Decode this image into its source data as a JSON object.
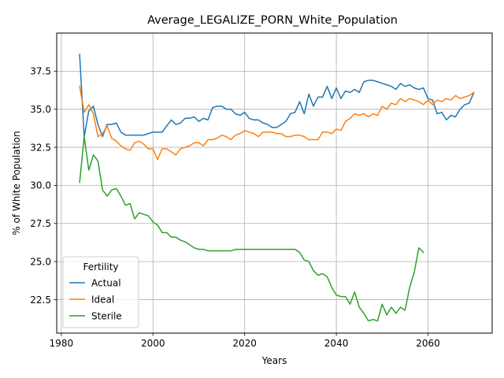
{
  "chart_data": {
    "type": "line",
    "title": "Average_LEGALIZE_PORN_White_Population",
    "xlabel": "Years",
    "ylabel": "% of White Population",
    "xlim": [
      1979,
      2074
    ],
    "ylim": [
      20.3,
      40.0
    ],
    "xticks": [
      1980,
      2000,
      2020,
      2040,
      2060
    ],
    "yticks": [
      22.5,
      25.0,
      27.5,
      30.0,
      32.5,
      35.0,
      37.5
    ],
    "xtick_labels": [
      "1980",
      "2000",
      "2020",
      "2040",
      "2060"
    ],
    "ytick_labels": [
      "22.5",
      "25.0",
      "27.5",
      "30.0",
      "32.5",
      "35.0",
      "37.5"
    ],
    "grid": true,
    "legend": {
      "title": "Fertility",
      "position": "lower left"
    },
    "series": [
      {
        "name": "Actual",
        "color": "#1f77b4",
        "x": [
          1984,
          1985,
          1986,
          1987,
          1988,
          1989,
          1990,
          1991,
          1992,
          1993,
          1994,
          1995,
          1996,
          1997,
          1998,
          1999,
          2000,
          2001,
          2002,
          2003,
          2004,
          2005,
          2006,
          2007,
          2008,
          2009,
          2010,
          2011,
          2012,
          2013,
          2014,
          2015,
          2016,
          2017,
          2018,
          2019,
          2020,
          2021,
          2022,
          2023,
          2024,
          2025,
          2026,
          2027,
          2028,
          2029,
          2030,
          2031,
          2032,
          2033,
          2034,
          2035,
          2036,
          2037,
          2038,
          2039,
          2040,
          2041,
          2042,
          2043,
          2044,
          2045,
          2046,
          2047,
          2048,
          2049,
          2050,
          2051,
          2052,
          2053,
          2054,
          2055,
          2056,
          2057,
          2058,
          2059,
          2060,
          2061,
          2062,
          2063,
          2064,
          2065,
          2066,
          2067,
          2068,
          2069,
          2070
        ],
        "values": [
          38.6,
          33.2,
          34.9,
          35.2,
          34.0,
          33.2,
          34.0,
          34.0,
          34.1,
          33.5,
          33.3,
          33.3,
          33.3,
          33.3,
          33.3,
          33.4,
          33.5,
          33.5,
          33.5,
          33.9,
          34.3,
          34.0,
          34.1,
          34.4,
          34.4,
          34.5,
          34.2,
          34.4,
          34.3,
          35.1,
          35.2,
          35.2,
          35.0,
          35.0,
          34.7,
          34.6,
          34.8,
          34.4,
          34.3,
          34.3,
          34.1,
          34.0,
          33.8,
          33.8,
          34.0,
          34.2,
          34.7,
          34.8,
          35.5,
          34.7,
          36.0,
          35.2,
          35.8,
          35.8,
          36.5,
          35.7,
          36.4,
          35.7,
          36.2,
          36.1,
          36.3,
          36.1,
          36.8,
          36.9,
          36.9,
          36.8,
          36.7,
          36.6,
          36.5,
          36.3,
          36.7,
          36.5,
          36.6,
          36.4,
          36.3,
          36.4,
          35.7,
          35.6,
          34.7,
          34.8,
          34.3,
          34.6,
          34.5,
          35.0,
          35.3,
          35.4,
          36.1
        ]
      },
      {
        "name": "Ideal",
        "color": "#ff7f0e",
        "x": [
          1984,
          1985,
          1986,
          1987,
          1988,
          1989,
          1990,
          1991,
          1992,
          1993,
          1994,
          1995,
          1996,
          1997,
          1998,
          1999,
          2000,
          2001,
          2002,
          2003,
          2004,
          2005,
          2006,
          2007,
          2008,
          2009,
          2010,
          2011,
          2012,
          2013,
          2014,
          2015,
          2016,
          2017,
          2018,
          2019,
          2020,
          2021,
          2022,
          2023,
          2024,
          2025,
          2026,
          2027,
          2028,
          2029,
          2030,
          2031,
          2032,
          2033,
          2034,
          2035,
          2036,
          2037,
          2038,
          2039,
          2040,
          2041,
          2042,
          2043,
          2044,
          2045,
          2046,
          2047,
          2048,
          2049,
          2050,
          2051,
          2052,
          2053,
          2054,
          2055,
          2056,
          2057,
          2058,
          2059,
          2060,
          2061,
          2062,
          2063,
          2064,
          2065,
          2066,
          2067,
          2068,
          2069,
          2070
        ],
        "values": [
          36.5,
          34.8,
          35.3,
          34.7,
          33.2,
          33.4,
          33.9,
          33.1,
          32.9,
          32.6,
          32.4,
          32.3,
          32.8,
          32.9,
          32.7,
          32.4,
          32.4,
          31.7,
          32.4,
          32.4,
          32.2,
          32.0,
          32.4,
          32.5,
          32.6,
          32.8,
          32.8,
          32.6,
          33.0,
          33.0,
          33.1,
          33.3,
          33.2,
          33.0,
          33.3,
          33.4,
          33.6,
          33.5,
          33.4,
          33.2,
          33.5,
          33.5,
          33.5,
          33.4,
          33.4,
          33.2,
          33.2,
          33.3,
          33.3,
          33.2,
          33.0,
          33.0,
          33.0,
          33.5,
          33.5,
          33.4,
          33.7,
          33.6,
          34.2,
          34.4,
          34.7,
          34.6,
          34.7,
          34.5,
          34.7,
          34.6,
          35.2,
          35.0,
          35.4,
          35.3,
          35.7,
          35.5,
          35.7,
          35.6,
          35.5,
          35.3,
          35.6,
          35.3,
          35.6,
          35.5,
          35.7,
          35.6,
          35.9,
          35.7,
          35.8,
          35.9,
          36.1
        ]
      },
      {
        "name": "Sterile",
        "color": "#2ca02c",
        "x": [
          1984,
          1985,
          1986,
          1987,
          1988,
          1989,
          1990,
          1991,
          1992,
          1993,
          1994,
          1995,
          1996,
          1997,
          1998,
          1999,
          2000,
          2001,
          2002,
          2003,
          2004,
          2005,
          2006,
          2007,
          2008,
          2009,
          2010,
          2011,
          2012,
          2013,
          2014,
          2015,
          2016,
          2017,
          2018,
          2019,
          2020,
          2021,
          2022,
          2023,
          2024,
          2025,
          2026,
          2027,
          2028,
          2029,
          2030,
          2031,
          2032,
          2033,
          2034,
          2035,
          2036,
          2037,
          2038,
          2039,
          2040,
          2041,
          2042,
          2043,
          2044,
          2045,
          2046,
          2047,
          2048,
          2049,
          2050,
          2051,
          2052,
          2053,
          2054,
          2055,
          2056,
          2057,
          2058,
          2059
        ],
        "values": [
          30.2,
          33.2,
          31.0,
          32.0,
          31.6,
          29.7,
          29.3,
          29.7,
          29.8,
          29.3,
          28.7,
          28.8,
          27.8,
          28.2,
          28.1,
          28.0,
          27.6,
          27.4,
          26.9,
          26.9,
          26.6,
          26.6,
          26.4,
          26.3,
          26.1,
          25.9,
          25.8,
          25.8,
          25.7,
          25.7,
          25.7,
          25.7,
          25.7,
          25.7,
          25.8,
          25.8,
          25.8,
          25.8,
          25.8,
          25.8,
          25.8,
          25.8,
          25.8,
          25.8,
          25.8,
          25.8,
          25.8,
          25.8,
          25.6,
          25.1,
          25.0,
          24.4,
          24.1,
          24.2,
          24.0,
          23.3,
          22.8,
          22.7,
          22.7,
          22.2,
          23.0,
          22.0,
          21.6,
          21.1,
          21.2,
          21.1,
          22.2,
          21.5,
          22.0,
          21.6,
          22.0,
          21.8,
          23.3,
          24.3,
          25.9,
          25.6
        ]
      }
    ]
  }
}
